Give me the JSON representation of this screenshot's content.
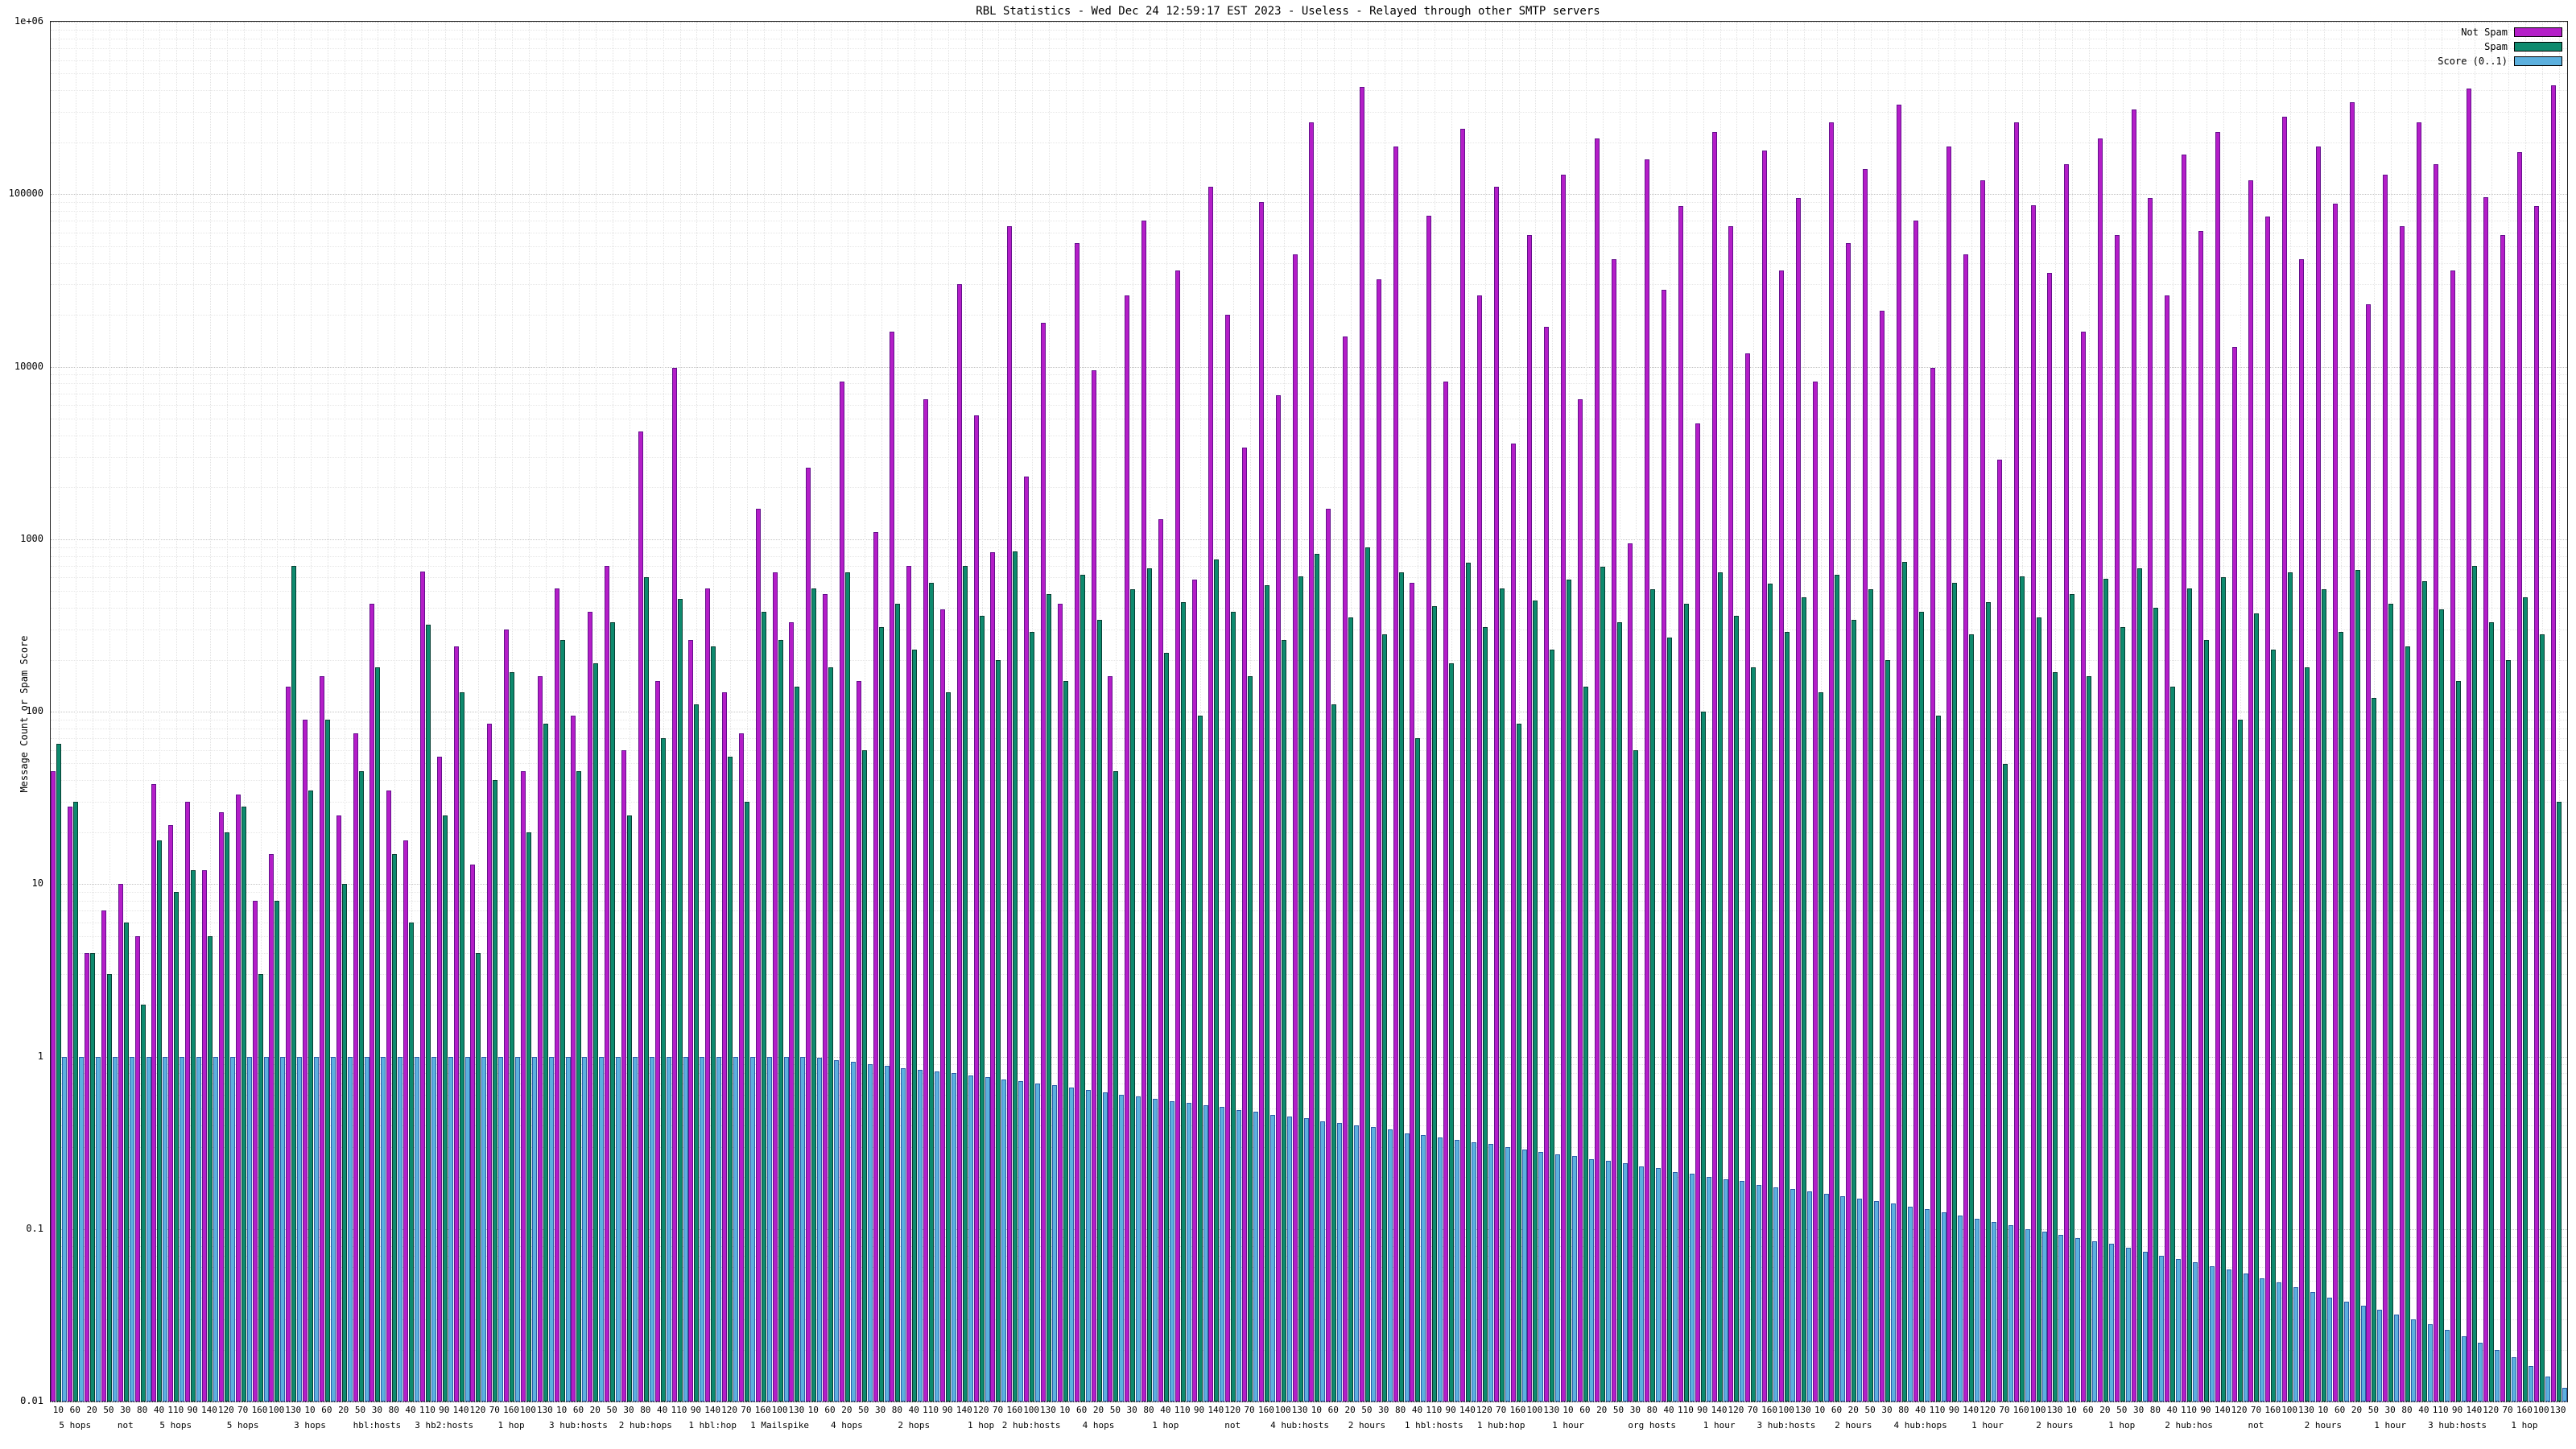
{
  "chart_data": {
    "type": "bar",
    "title": "RBL Statistics - Wed Dec 24 12:59:17 EST 2023 - Useless - Relayed through other SMTP servers",
    "ylabel": "Message Count or Spam Score",
    "y_scale": "log",
    "ylim": [
      0.01,
      1000000
    ],
    "y_tick_labels": [
      "1e+06",
      "100000",
      "10000",
      "1000",
      "100",
      "10",
      "1",
      "0.1",
      "0.01"
    ],
    "grid": true,
    "legend_position": "top-right",
    "background": "#ffffff",
    "series": [
      {
        "name": "Not Spam",
        "color": "#b41ec8",
        "border": "#64108c",
        "values": [
          45,
          28,
          4,
          7,
          10,
          5,
          38,
          22,
          30,
          12,
          26,
          33,
          8,
          15,
          140,
          90,
          160,
          25,
          75,
          420,
          35,
          18,
          650,
          55,
          240,
          13,
          85,
          300,
          45,
          160,
          520,
          95,
          380,
          700,
          60,
          4200,
          150,
          9800,
          260,
          520,
          130,
          75,
          1500,
          640,
          330,
          2600,
          480,
          8200,
          150,
          1100,
          16000,
          700,
          6500,
          390,
          30000,
          5200,
          840,
          65000,
          2300,
          18000,
          420,
          52000,
          9500,
          160,
          26000,
          70000,
          1300,
          36000,
          580,
          110000,
          20000,
          3400,
          90000,
          6800,
          45000,
          260000,
          1500,
          15000,
          420000,
          32000,
          190000,
          560,
          75000,
          8200,
          240000,
          26000,
          110000,
          3600,
          58000,
          17000,
          130000,
          6500,
          210000,
          42000,
          950,
          160000,
          28000,
          85000,
          4700,
          230000,
          65000,
          12000,
          180000,
          36000,
          95000,
          8200,
          260000,
          52000,
          140000,
          21000,
          330000,
          70000,
          9800,
          190000,
          45000,
          120000,
          2900,
          260000,
          86000,
          35000,
          150000,
          16000,
          210000,
          58000,
          310000,
          95000,
          26000,
          170000,
          61000,
          230000,
          13000,
          120000,
          74000,
          280000,
          42000,
          190000,
          88000,
          340000,
          23000,
          130000,
          65000,
          260000,
          150000,
          36000,
          410000,
          96000,
          58000,
          175000,
          85000,
          430000
        ]
      },
      {
        "name": "Spam",
        "color": "#0e8a6e",
        "border": "#073f33",
        "values": [
          65,
          30,
          4,
          3,
          6,
          2,
          18,
          9,
          12,
          5,
          20,
          28,
          3,
          8,
          700,
          35,
          90,
          10,
          45,
          180,
          15,
          6,
          320,
          25,
          130,
          4,
          40,
          170,
          20,
          85,
          260,
          45,
          190,
          330,
          25,
          600,
          70,
          450,
          110,
          240,
          55,
          30,
          380,
          260,
          140,
          520,
          180,
          640,
          60,
          310,
          420,
          230,
          560,
          130,
          700,
          360,
          200,
          850,
          290,
          480,
          150,
          620,
          340,
          45,
          510,
          680,
          220,
          430,
          95,
          760,
          380,
          160,
          540,
          260,
          610,
          820,
          110,
          350,
          900,
          280,
          640,
          70,
          410,
          190,
          730,
          310,
          520,
          85,
          440,
          230,
          580,
          140,
          690,
          330,
          60,
          510,
          270,
          420,
          100,
          640,
          360,
          180,
          550,
          290,
          460,
          130,
          620,
          340,
          510,
          200,
          740,
          380,
          95,
          560,
          280,
          430,
          50,
          610,
          350,
          170,
          480,
          160,
          590,
          310,
          680,
          400,
          140,
          520,
          260,
          600,
          90,
          370,
          230,
          640,
          180,
          510,
          290,
          660,
          120,
          420,
          240,
          570,
          390,
          150,
          700,
          330,
          200,
          460,
          280,
          30
        ]
      },
      {
        "name": "Score (0..1)",
        "color": "#5cb0de",
        "border": "#2a5fa8",
        "values": [
          1,
          1,
          1,
          1,
          1,
          1,
          1,
          1,
          1,
          1,
          1,
          1,
          1,
          1,
          1,
          1,
          1,
          1,
          1,
          1,
          1,
          1,
          1,
          1,
          1,
          1,
          1,
          1,
          1,
          1,
          1,
          1,
          1,
          1,
          1,
          1,
          1,
          1,
          1,
          1,
          1,
          1,
          1,
          1,
          1,
          0.98,
          0.95,
          0.93,
          0.9,
          0.88,
          0.86,
          0.84,
          0.82,
          0.8,
          0.78,
          0.76,
          0.74,
          0.72,
          0.7,
          0.68,
          0.66,
          0.64,
          0.62,
          0.6,
          0.59,
          0.57,
          0.55,
          0.54,
          0.52,
          0.51,
          0.49,
          0.48,
          0.46,
          0.45,
          0.44,
          0.42,
          0.41,
          0.4,
          0.39,
          0.38,
          0.36,
          0.35,
          0.34,
          0.33,
          0.32,
          0.31,
          0.3,
          0.29,
          0.28,
          0.27,
          0.265,
          0.255,
          0.25,
          0.24,
          0.23,
          0.225,
          0.215,
          0.21,
          0.2,
          0.195,
          0.19,
          0.18,
          0.175,
          0.17,
          0.165,
          0.16,
          0.155,
          0.15,
          0.145,
          0.14,
          0.135,
          0.13,
          0.125,
          0.12,
          0.115,
          0.11,
          0.105,
          0.1,
          0.097,
          0.093,
          0.089,
          0.085,
          0.082,
          0.078,
          0.074,
          0.07,
          0.067,
          0.064,
          0.061,
          0.058,
          0.055,
          0.052,
          0.049,
          0.046,
          0.043,
          0.04,
          0.038,
          0.036,
          0.034,
          0.032,
          0.03,
          0.028,
          0.026,
          0.024,
          0.022,
          0.02,
          0.018,
          0.016,
          0.014,
          0.012
        ]
      }
    ],
    "x_tick_labels": "10 60 20 50 30 80 40 110 90 140 120 70 160 100 130 10 60 20 50 30 80 40 110 90 140 120 70 160 100 130 10 60 20 50 30 80 40 110 90 140 120 70 160 100 130 10 60 20 50 30 80 40 110 90 140 120 70 160 100 130 10 60 20 50 30 80 40 110 90 140 120 70 160 100 130 10 60 20 50 30 80 40 110 90 140 120 70 160 100 130 10 60 20 50 30 80 40 110 90 140 120 70 160 100 130 10 60 20 50 30 80 40 110 90 140 120 70 160 100 130 10 60 20 50 30 80 40 110 90 140 120 70 160 100 130 10 60 20 50 30 80 40 110 90 140 120 70 160 100 130",
    "x_annotations": [
      {
        "pos": 1,
        "label": "5 hops"
      },
      {
        "pos": 4,
        "label": "not"
      },
      {
        "pos": 7,
        "label": "5 hops"
      },
      {
        "pos": 11,
        "label": "5 hops"
      },
      {
        "pos": 15,
        "label": "3 hops"
      },
      {
        "pos": 19,
        "label": "hbl:hosts"
      },
      {
        "pos": 23,
        "label": "3 hb2:hosts"
      },
      {
        "pos": 27,
        "label": "1 hop"
      },
      {
        "pos": 31,
        "label": "3 hub:hosts"
      },
      {
        "pos": 35,
        "label": "2 hub:hops"
      },
      {
        "pos": 39,
        "label": "1 hbl:hop"
      },
      {
        "pos": 43,
        "label": "1 Mailspike"
      },
      {
        "pos": 47,
        "label": "4 hops"
      },
      {
        "pos": 51,
        "label": "2 hops"
      },
      {
        "pos": 55,
        "label": "1 hop"
      },
      {
        "pos": 58,
        "label": "2 hub:hosts"
      },
      {
        "pos": 62,
        "label": "4 hops"
      },
      {
        "pos": 66,
        "label": "1 hop"
      },
      {
        "pos": 70,
        "label": "not"
      },
      {
        "pos": 74,
        "label": "4 hub:hosts"
      },
      {
        "pos": 78,
        "label": "2 hours"
      },
      {
        "pos": 82,
        "label": "1 hbl:hosts"
      },
      {
        "pos": 86,
        "label": "1 hub:hop"
      },
      {
        "pos": 90,
        "label": "1 hour"
      },
      {
        "pos": 95,
        "label": "org hosts"
      },
      {
        "pos": 99,
        "label": "1 hour"
      },
      {
        "pos": 103,
        "label": "3 hub:hosts"
      },
      {
        "pos": 107,
        "label": "2 hours"
      },
      {
        "pos": 111,
        "label": "4 hub:hops"
      },
      {
        "pos": 115,
        "label": "1 hour"
      },
      {
        "pos": 119,
        "label": "2 hours"
      },
      {
        "pos": 123,
        "label": "1 hop"
      },
      {
        "pos": 127,
        "label": "2 hub:hos"
      },
      {
        "pos": 131,
        "label": "not"
      },
      {
        "pos": 135,
        "label": "2 hours"
      },
      {
        "pos": 139,
        "label": "1 hour"
      },
      {
        "pos": 143,
        "label": "3 hub:hosts"
      },
      {
        "pos": 147,
        "label": "1 hop"
      }
    ]
  }
}
